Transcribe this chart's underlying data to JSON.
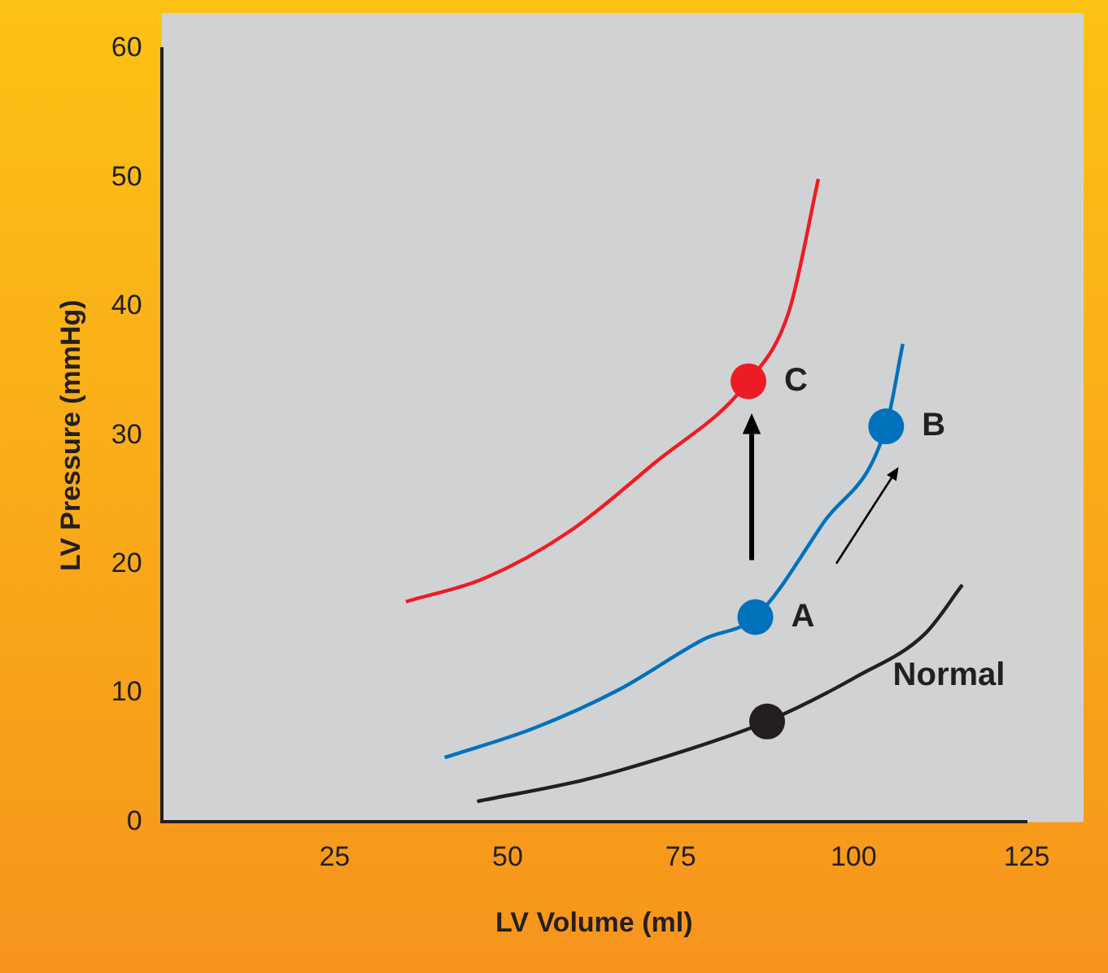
{
  "chart_data": {
    "type": "line",
    "xlabel": "LV Volume (ml)",
    "ylabel": "LV Pressure (mmHg)",
    "xlim": [
      0,
      125
    ],
    "xticks": [
      25,
      50,
      75,
      100,
      125
    ],
    "ylim": [
      0,
      60
    ],
    "yticks": [
      0,
      10,
      20,
      30,
      40,
      50,
      60
    ],
    "grid": false,
    "legend": false,
    "series": [
      {
        "color": "#231f20",
        "x": [
          45.6,
          61.3,
          76,
          87.5,
          100.5,
          110.3,
          115.7
        ],
        "values": [
          1.6,
          3.3,
          5.6,
          7.8,
          11.3,
          14.6,
          18.4
        ],
        "marker": "none"
      },
      {
        "color": "#0072bc",
        "x": [
          40.9,
          53.9,
          66.2,
          78.4,
          85.8,
          95.6,
          104.7,
          107.1
        ],
        "values": [
          5,
          7.3,
          10.3,
          14.2,
          15.9,
          23.2,
          30.7,
          37.1
        ],
        "marker": "none"
      },
      {
        "color": "#ed1c24",
        "x": [
          35.3,
          46.6,
          58.8,
          71.1,
          84.8,
          90.7,
          94.9
        ],
        "values": [
          17.1,
          18.9,
          22.5,
          27.8,
          34.2,
          39.7,
          49.9
        ],
        "marker": "none"
      },
      {
        "type": "scatter",
        "x": [
          87.5,
          85.8,
          104.7,
          84.8
        ],
        "values": [
          7.8,
          15.9,
          30.7,
          34.2
        ],
        "colors": [
          "#231f20",
          "#0072bc",
          "#0072bc",
          "#ed1c24"
        ],
        "marker": "circle"
      }
    ],
    "annotations": [
      {
        "text": "A",
        "x": 85.8,
        "y": 15.9
      },
      {
        "text": "B",
        "x": 104.7,
        "y": 30.7
      },
      {
        "text": "C",
        "x": 84.8,
        "y": 34.2
      },
      {
        "text": "Normal",
        "x": 100.5,
        "y": 11.3
      }
    ]
  }
}
